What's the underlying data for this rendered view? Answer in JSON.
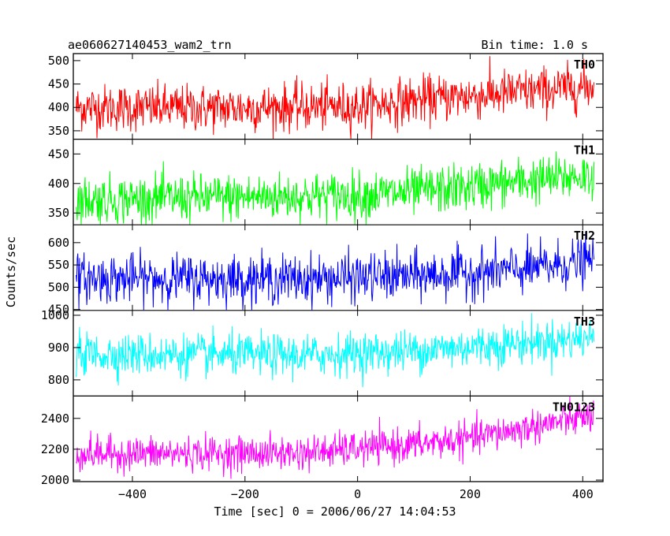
{
  "chart_data": {
    "type": "line",
    "title": "ae060627140453_wam2_trn",
    "subtitle": "Bin time: 1.0 s",
    "xlabel": "Time [sec] 0 = 2006/06/27 14:04:53",
    "ylabel": "Counts/sec",
    "xlim": [
      -505,
      436
    ],
    "x_ticks": [
      -400,
      -200,
      0,
      200,
      400
    ],
    "x_tick_labels": [
      "−400",
      "−200",
      "0",
      "200",
      "400"
    ],
    "x_range": [
      -500,
      420
    ],
    "series": [
      {
        "name": "TH0",
        "color": "#ff0000",
        "ylim": [
          332,
          515
        ],
        "y_ticks": [
          350,
          400,
          450,
          500
        ],
        "y_tick_labels": [
          "350",
          "400",
          "450",
          "500"
        ],
        "trend": [
          [
            -500,
            400
          ],
          [
            -300,
            398
          ],
          [
            0,
            402
          ],
          [
            100,
            415
          ],
          [
            420,
            445
          ]
        ],
        "noise_sd": 25
      },
      {
        "name": "TH1",
        "color": "#00ff00",
        "ylim": [
          330,
          475
        ],
        "y_ticks": [
          350,
          400,
          450
        ],
        "y_tick_labels": [
          "350",
          "400",
          "450"
        ],
        "trend": [
          [
            -500,
            372
          ],
          [
            0,
            380
          ],
          [
            100,
            385
          ],
          [
            420,
            415
          ]
        ],
        "noise_sd": 20
      },
      {
        "name": "TH2",
        "color": "#0000ff",
        "ylim": [
          448,
          640
        ],
        "y_ticks": [
          450,
          500,
          550,
          600
        ],
        "y_tick_labels": [
          "450",
          "500",
          "550",
          "600"
        ],
        "trend": [
          [
            -500,
            520
          ],
          [
            -100,
            518
          ],
          [
            100,
            525
          ],
          [
            300,
            540
          ],
          [
            420,
            560
          ]
        ],
        "noise_sd": 27
      },
      {
        "name": "TH3",
        "color": "#00ffff",
        "ylim": [
          750,
          1015
        ],
        "y_ticks": [
          800,
          900,
          1000
        ],
        "y_tick_labels": [
          "800",
          "900",
          "1000"
        ],
        "trend": [
          [
            -500,
            880
          ],
          [
            -100,
            875
          ],
          [
            100,
            890
          ],
          [
            420,
            930
          ]
        ],
        "noise_sd": 32
      },
      {
        "name": "TH0123",
        "color": "#ff00ff",
        "ylim": [
          1990,
          2545
        ],
        "y_ticks": [
          2000,
          2200,
          2400
        ],
        "y_tick_labels": [
          "2000",
          "2200",
          "2400"
        ],
        "trend": [
          [
            -500,
            2170
          ],
          [
            -100,
            2175
          ],
          [
            100,
            2230
          ],
          [
            200,
            2270
          ],
          [
            420,
            2420
          ]
        ],
        "noise_sd": 55
      }
    ]
  }
}
